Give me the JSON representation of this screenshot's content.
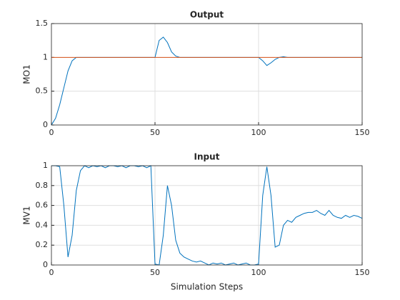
{
  "chart_data": [
    {
      "type": "line",
      "title": "Output",
      "ylabel": "MO1",
      "xlim": [
        0,
        150
      ],
      "xticks": [
        0,
        50,
        100,
        150
      ],
      "ylim": [
        0,
        1.5
      ],
      "yticks": [
        0,
        0.5,
        1,
        1.5
      ],
      "grid": true,
      "series": [
        {
          "color": "#0072bd",
          "x": [
            0,
            2,
            4,
            6,
            8,
            10,
            12,
            14,
            16,
            18,
            20,
            22,
            24,
            26,
            28,
            30,
            32,
            34,
            36,
            38,
            40,
            42,
            44,
            46,
            48,
            50,
            52,
            54,
            56,
            58,
            60,
            62,
            64,
            66,
            68,
            70,
            72,
            74,
            76,
            78,
            80,
            82,
            84,
            86,
            88,
            90,
            92,
            94,
            96,
            98,
            100,
            102,
            104,
            106,
            108,
            110,
            112,
            114,
            116,
            118,
            120,
            122,
            124,
            126,
            128,
            130,
            132,
            134,
            136,
            138,
            140,
            142,
            144,
            146,
            148,
            150
          ],
          "values": [
            0,
            0.1,
            0.3,
            0.55,
            0.8,
            0.95,
            1,
            1,
            1,
            1,
            1,
            1,
            1,
            1,
            1,
            1,
            1,
            1,
            1,
            1,
            1,
            1,
            1,
            1,
            1,
            1,
            1.25,
            1.3,
            1.22,
            1.08,
            1.02,
            1,
            1,
            1,
            1,
            1,
            1,
            1,
            1,
            1,
            1,
            1,
            1,
            1,
            1,
            1,
            1,
            1,
            1,
            1,
            1,
            0.95,
            0.88,
            0.92,
            0.97,
            1,
            1.01,
            1,
            1,
            1,
            1,
            1,
            1,
            1,
            1,
            1,
            1,
            1,
            1,
            1,
            1,
            1,
            1,
            1,
            1,
            1
          ]
        },
        {
          "color": "#d95319",
          "x": [
            0,
            150
          ],
          "values": [
            1,
            1
          ]
        }
      ]
    },
    {
      "type": "line",
      "title": "Input",
      "ylabel": "MV1",
      "xlabel": "Simulation Steps",
      "xlim": [
        0,
        150
      ],
      "xticks": [
        0,
        50,
        100,
        150
      ],
      "ylim": [
        0,
        1
      ],
      "yticks": [
        0,
        0.2,
        0.4,
        0.6,
        0.8,
        1
      ],
      "grid": true,
      "series": [
        {
          "color": "#0072bd",
          "x": [
            0,
            2,
            4,
            6,
            8,
            10,
            12,
            14,
            16,
            18,
            20,
            22,
            24,
            26,
            28,
            30,
            32,
            34,
            36,
            38,
            40,
            42,
            44,
            46,
            48,
            50,
            52,
            54,
            56,
            58,
            60,
            62,
            64,
            66,
            68,
            70,
            72,
            74,
            76,
            78,
            80,
            82,
            84,
            86,
            88,
            90,
            92,
            94,
            96,
            98,
            100,
            102,
            104,
            106,
            108,
            110,
            112,
            114,
            116,
            118,
            120,
            122,
            124,
            126,
            128,
            130,
            132,
            134,
            136,
            138,
            140,
            142,
            144,
            146,
            148,
            150
          ],
          "values": [
            1,
            1,
            0.99,
            0.6,
            0.08,
            0.3,
            0.75,
            0.95,
            1,
            0.98,
            1,
            0.99,
            1,
            0.98,
            1,
            1,
            0.99,
            1,
            0.98,
            1,
            1,
            0.99,
            1,
            0.98,
            1,
            0.01,
            0,
            0.3,
            0.8,
            0.6,
            0.25,
            0.12,
            0.08,
            0.06,
            0.04,
            0.03,
            0.04,
            0.02,
            0,
            0.02,
            0.01,
            0.02,
            0,
            0.01,
            0.02,
            0,
            0.01,
            0.02,
            0,
            0,
            0.01,
            0.7,
            0.99,
            0.7,
            0.18,
            0.2,
            0.4,
            0.45,
            0.43,
            0.48,
            0.5,
            0.52,
            0.53,
            0.53,
            0.55,
            0.52,
            0.5,
            0.55,
            0.5,
            0.48,
            0.47,
            0.5,
            0.48,
            0.5,
            0.49,
            0.47
          ]
        }
      ]
    }
  ]
}
